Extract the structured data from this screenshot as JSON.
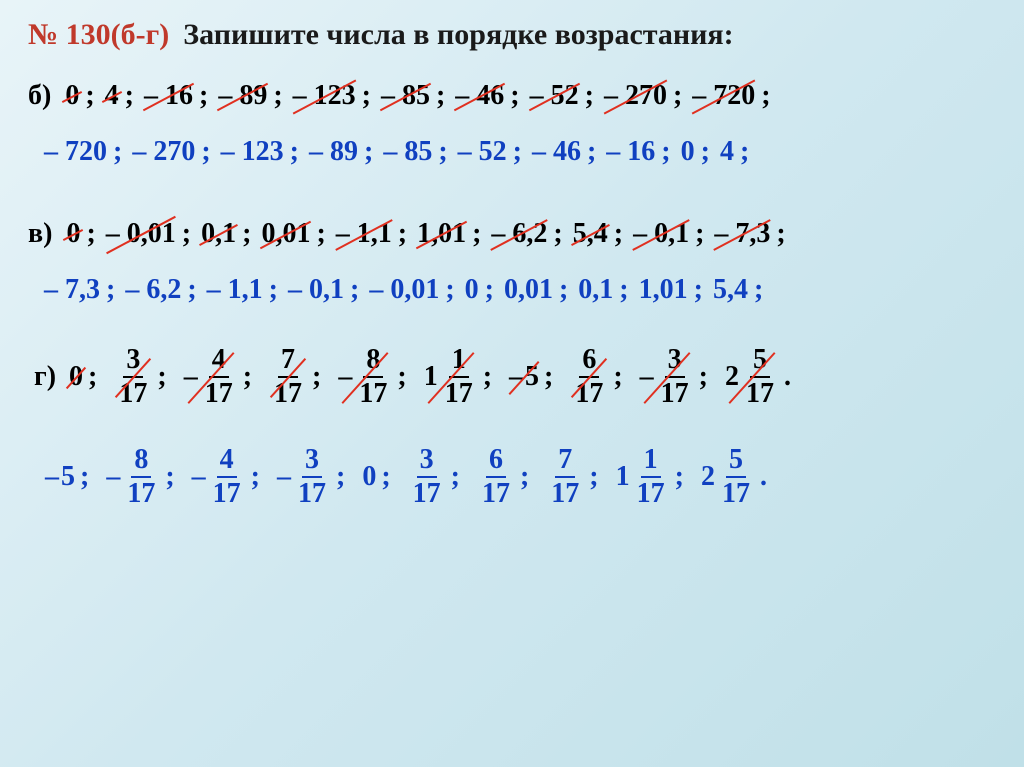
{
  "header": {
    "exercise": "№ 130(б-г)",
    "title": "Запишите числа в порядке возрастания:"
  },
  "b": {
    "label": "б)",
    "given": [
      "0",
      "4",
      "– 16",
      "– 89",
      "– 123",
      "– 85",
      "– 46",
      "– 52",
      "– 270",
      "– 720"
    ],
    "answer": [
      "– 720",
      "– 270",
      "– 123",
      "– 89",
      "– 85",
      "– 52",
      "– 46",
      "– 16",
      "0",
      "4"
    ]
  },
  "v": {
    "label": "в)",
    "given": [
      "0",
      "– 0,01",
      "0,1",
      "0,01",
      "– 1,1",
      "1,01",
      "– 6,2",
      "5,4",
      "– 0,1",
      "– 7,3"
    ],
    "answer": [
      "– 7,3",
      "– 6,2",
      "– 1,1",
      "– 0,1",
      "– 0,01",
      "0",
      "0,01",
      "0,1",
      "1,01",
      "5,4"
    ]
  },
  "g": {
    "label": "г)",
    "given": [
      {
        "type": "int",
        "val": "0"
      },
      {
        "type": "frac",
        "num": "3",
        "den": "17"
      },
      {
        "type": "frac",
        "neg": true,
        "num": "4",
        "den": "17"
      },
      {
        "type": "frac",
        "num": "7",
        "den": "17"
      },
      {
        "type": "frac",
        "neg": true,
        "num": "8",
        "den": "17"
      },
      {
        "type": "mixed",
        "whole": "1",
        "num": "1",
        "den": "17"
      },
      {
        "type": "int",
        "neg": true,
        "val": "5"
      },
      {
        "type": "frac",
        "num": "6",
        "den": "17"
      },
      {
        "type": "frac",
        "neg": true,
        "num": "3",
        "den": "17"
      },
      {
        "type": "mixed",
        "whole": "2",
        "num": "5",
        "den": "17"
      }
    ],
    "answer": [
      {
        "type": "int",
        "neg": true,
        "val": "5"
      },
      {
        "type": "frac",
        "neg": true,
        "num": "8",
        "den": "17"
      },
      {
        "type": "frac",
        "neg": true,
        "num": "4",
        "den": "17"
      },
      {
        "type": "frac",
        "neg": true,
        "num": "3",
        "den": "17"
      },
      {
        "type": "int",
        "val": "0"
      },
      {
        "type": "frac",
        "num": "3",
        "den": "17"
      },
      {
        "type": "frac",
        "num": "6",
        "den": "17"
      },
      {
        "type": "frac",
        "num": "7",
        "den": "17"
      },
      {
        "type": "mixed",
        "whole": "1",
        "num": "1",
        "den": "17"
      },
      {
        "type": "mixed",
        "whole": "2",
        "num": "5",
        "den": "17"
      }
    ]
  },
  "style": {
    "problem_color": "#000000",
    "answer_color": "#1040c0",
    "strike_color": "#e03020",
    "header_color": "#c0392b",
    "font_size_body": 28,
    "font_size_header": 30
  }
}
